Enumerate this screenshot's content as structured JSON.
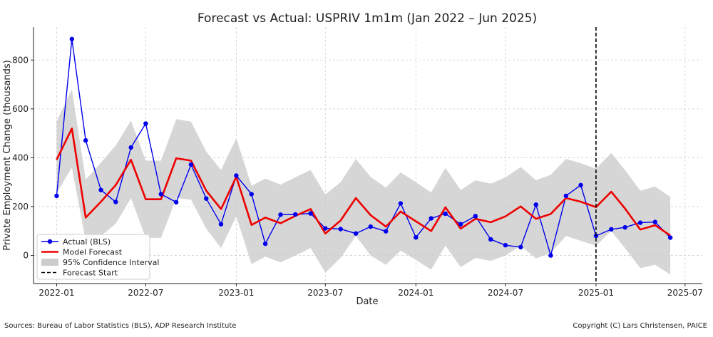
{
  "chart_data": {
    "type": "line",
    "title": "Forecast vs Actual: USPRIV 1m1m (Jan 2022 – Jun 2025)",
    "xlabel": "Date",
    "ylabel": "Private Employment Change (thousands)",
    "x_ticks": [
      "2022-01",
      "2022-07",
      "2023-01",
      "2023-07",
      "2024-01",
      "2024-07",
      "2025-01",
      "2025-07"
    ],
    "y_ticks": [
      0,
      200,
      400,
      600,
      800
    ],
    "ylim": [
      -115,
      935
    ],
    "xlim": [
      "2021-11-15",
      "2025-08-05"
    ],
    "grid": true,
    "legend_position": "lower-left",
    "forecast_start": "2025-01",
    "dates": [
      "2022-01",
      "2022-02",
      "2022-03",
      "2022-04",
      "2022-05",
      "2022-06",
      "2022-07",
      "2022-08",
      "2022-09",
      "2022-10",
      "2022-11",
      "2022-12",
      "2023-01",
      "2023-02",
      "2023-03",
      "2023-04",
      "2023-05",
      "2023-06",
      "2023-07",
      "2023-08",
      "2023-09",
      "2023-10",
      "2023-11",
      "2023-12",
      "2024-01",
      "2024-02",
      "2024-03",
      "2024-04",
      "2024-05",
      "2024-06",
      "2024-07",
      "2024-08",
      "2024-09",
      "2024-10",
      "2024-11",
      "2024-12",
      "2025-01",
      "2025-02",
      "2025-03",
      "2025-04",
      "2025-05",
      "2025-06"
    ],
    "series": [
      {
        "name": "Actual (BLS)",
        "color": "#0000ee",
        "values": [
          244,
          886,
          471,
          268,
          219,
          442,
          540,
          251,
          218,
          372,
          233,
          128,
          327,
          251,
          48,
          167,
          168,
          172,
          111,
          108,
          90,
          118,
          99,
          213,
          74,
          152,
          171,
          128,
          161,
          66,
          42,
          34,
          208,
          0,
          244,
          288,
          80,
          107,
          115,
          134,
          137,
          73
        ]
      },
      {
        "name": "Model Forecast",
        "color": "#ee0000",
        "values": [
          392,
          520,
          155,
          220,
          288,
          392,
          230,
          230,
          398,
          388,
          265,
          190,
          322,
          125,
          155,
          132,
          162,
          190,
          90,
          143,
          235,
          165,
          118,
          180,
          140,
          100,
          197,
          110,
          150,
          136,
          160,
          201,
          150,
          170,
          235,
          220,
          198,
          261,
          192,
          106,
          124,
          82
        ]
      },
      {
        "name": "95% Confidence Interval",
        "color": "#cccccc",
        "lower": [
          255,
          360,
          60,
          80,
          130,
          235,
          72,
          72,
          235,
          228,
          110,
          30,
          160,
          -35,
          -5,
          -28,
          0,
          30,
          -70,
          -10,
          80,
          0,
          -38,
          20,
          -18,
          -58,
          40,
          -48,
          -10,
          -22,
          0,
          40,
          -12,
          10,
          80,
          60,
          40,
          100,
          30,
          -52,
          -38,
          -78
        ],
        "upper": [
          550,
          680,
          310,
          380,
          450,
          552,
          388,
          388,
          558,
          548,
          425,
          350,
          480,
          285,
          315,
          290,
          320,
          350,
          250,
          300,
          395,
          322,
          278,
          340,
          300,
          258,
          358,
          268,
          308,
          294,
          320,
          362,
          308,
          330,
          395,
          378,
          355,
          420,
          350,
          265,
          282,
          240
        ]
      }
    ],
    "legend": [
      "Actual (BLS)",
      "Model Forecast",
      "95% Confidence Interval",
      "Forecast Start"
    ]
  },
  "footer": {
    "source": "Sources: Bureau of Labor Statistics (BLS), ADP Research Institute",
    "copyright": "Copyright (C) Lars Christensen, PAICE"
  }
}
